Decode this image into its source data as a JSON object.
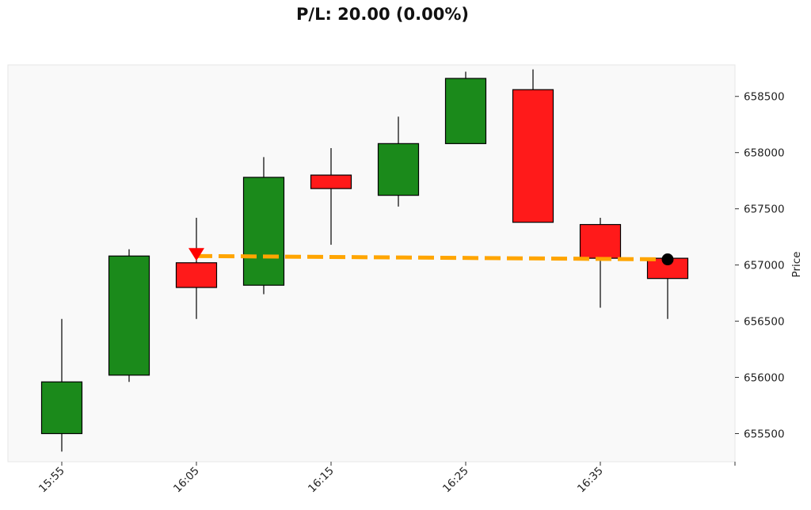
{
  "chart_data": {
    "type": "candlestick",
    "title": "P/L: 20.00 (0.00%)",
    "xlabel": "",
    "ylabel": "Price",
    "ylim": [
      655250,
      658780
    ],
    "xlim": [
      "15:51",
      "16:45"
    ],
    "x_ticks": [
      "15:55",
      "16:05",
      "16:15",
      "16:25",
      "16:35"
    ],
    "y_ticks": [
      655500,
      656000,
      656500,
      657000,
      657500,
      658000,
      658500
    ],
    "grid": false,
    "legend": "none",
    "colors": {
      "up": "#1b8a1b",
      "down": "#ff1a1a",
      "trade_line": "#ffa500",
      "entry_marker": "#ff0000",
      "exit_marker": "#000000",
      "plot_background": "#f9f9f9"
    },
    "candles": [
      {
        "time": "15:55",
        "open": 655500,
        "high": 656520,
        "low": 655340,
        "close": 655960
      },
      {
        "time": "16:00",
        "open": 656020,
        "high": 657140,
        "low": 655960,
        "close": 657080
      },
      {
        "time": "16:05",
        "open": 657020,
        "high": 657420,
        "low": 656520,
        "close": 656800
      },
      {
        "time": "16:10",
        "open": 656820,
        "high": 657960,
        "low": 656740,
        "close": 657780
      },
      {
        "time": "16:15",
        "open": 657800,
        "high": 658040,
        "low": 657180,
        "close": 657680
      },
      {
        "time": "16:20",
        "open": 657620,
        "high": 658320,
        "low": 657520,
        "close": 658080
      },
      {
        "time": "16:25",
        "open": 658080,
        "high": 658720,
        "low": 658080,
        "close": 658660
      },
      {
        "time": "16:30",
        "open": 658560,
        "high": 658740,
        "low": 657380,
        "close": 657380
      },
      {
        "time": "16:35",
        "open": 657360,
        "high": 657420,
        "low": 656620,
        "close": 657060
      },
      {
        "time": "16:40",
        "open": 657060,
        "high": 657060,
        "low": 656520,
        "close": 656880
      }
    ],
    "trade": {
      "entry": {
        "time": "16:05",
        "price": 657080,
        "marker": "down-triangle"
      },
      "exit": {
        "time": "16:40",
        "price": 657050,
        "marker": "circle"
      }
    }
  }
}
